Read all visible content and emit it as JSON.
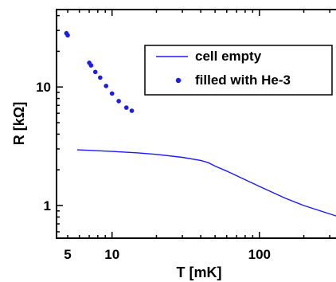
{
  "chart_data": {
    "type": "scatter",
    "xlabel": "T [mK]",
    "ylabel": "R [kΩ]",
    "x_scale": "log",
    "y_scale": "log",
    "xlim": [
      4.2,
      370
    ],
    "ylim": [
      0.53,
      45
    ],
    "x_ticks": [
      {
        "value": 5,
        "label": "5"
      },
      {
        "value": 10,
        "label": "10"
      },
      {
        "value": 100,
        "label": "100"
      }
    ],
    "y_ticks": [
      {
        "value": 1,
        "label": "1"
      },
      {
        "value": 10,
        "label": "10"
      }
    ],
    "legend_position": "top-right",
    "series": [
      {
        "name": "cell empty",
        "style": "line",
        "color": "#1a1aff",
        "x": [
          5.8,
          7,
          10,
          15,
          20,
          30,
          40,
          45,
          50,
          60,
          80,
          100,
          150,
          200,
          300,
          370
        ],
        "y": [
          2.95,
          2.92,
          2.86,
          2.78,
          2.7,
          2.55,
          2.4,
          2.3,
          2.15,
          1.95,
          1.65,
          1.45,
          1.15,
          1.0,
          0.85,
          0.78
        ]
      },
      {
        "name": "filled with He-3",
        "style": "markers",
        "color": "#1a1aff",
        "x": [
          4.9,
          5.0,
          7.0,
          7.2,
          7.7,
          8.3,
          9.1,
          10.0,
          11.1,
          12.5,
          13.6
        ],
        "y": [
          28.4,
          27.3,
          16.0,
          15.2,
          13.4,
          12.0,
          10.2,
          8.8,
          7.6,
          6.7,
          6.3
        ]
      }
    ]
  }
}
